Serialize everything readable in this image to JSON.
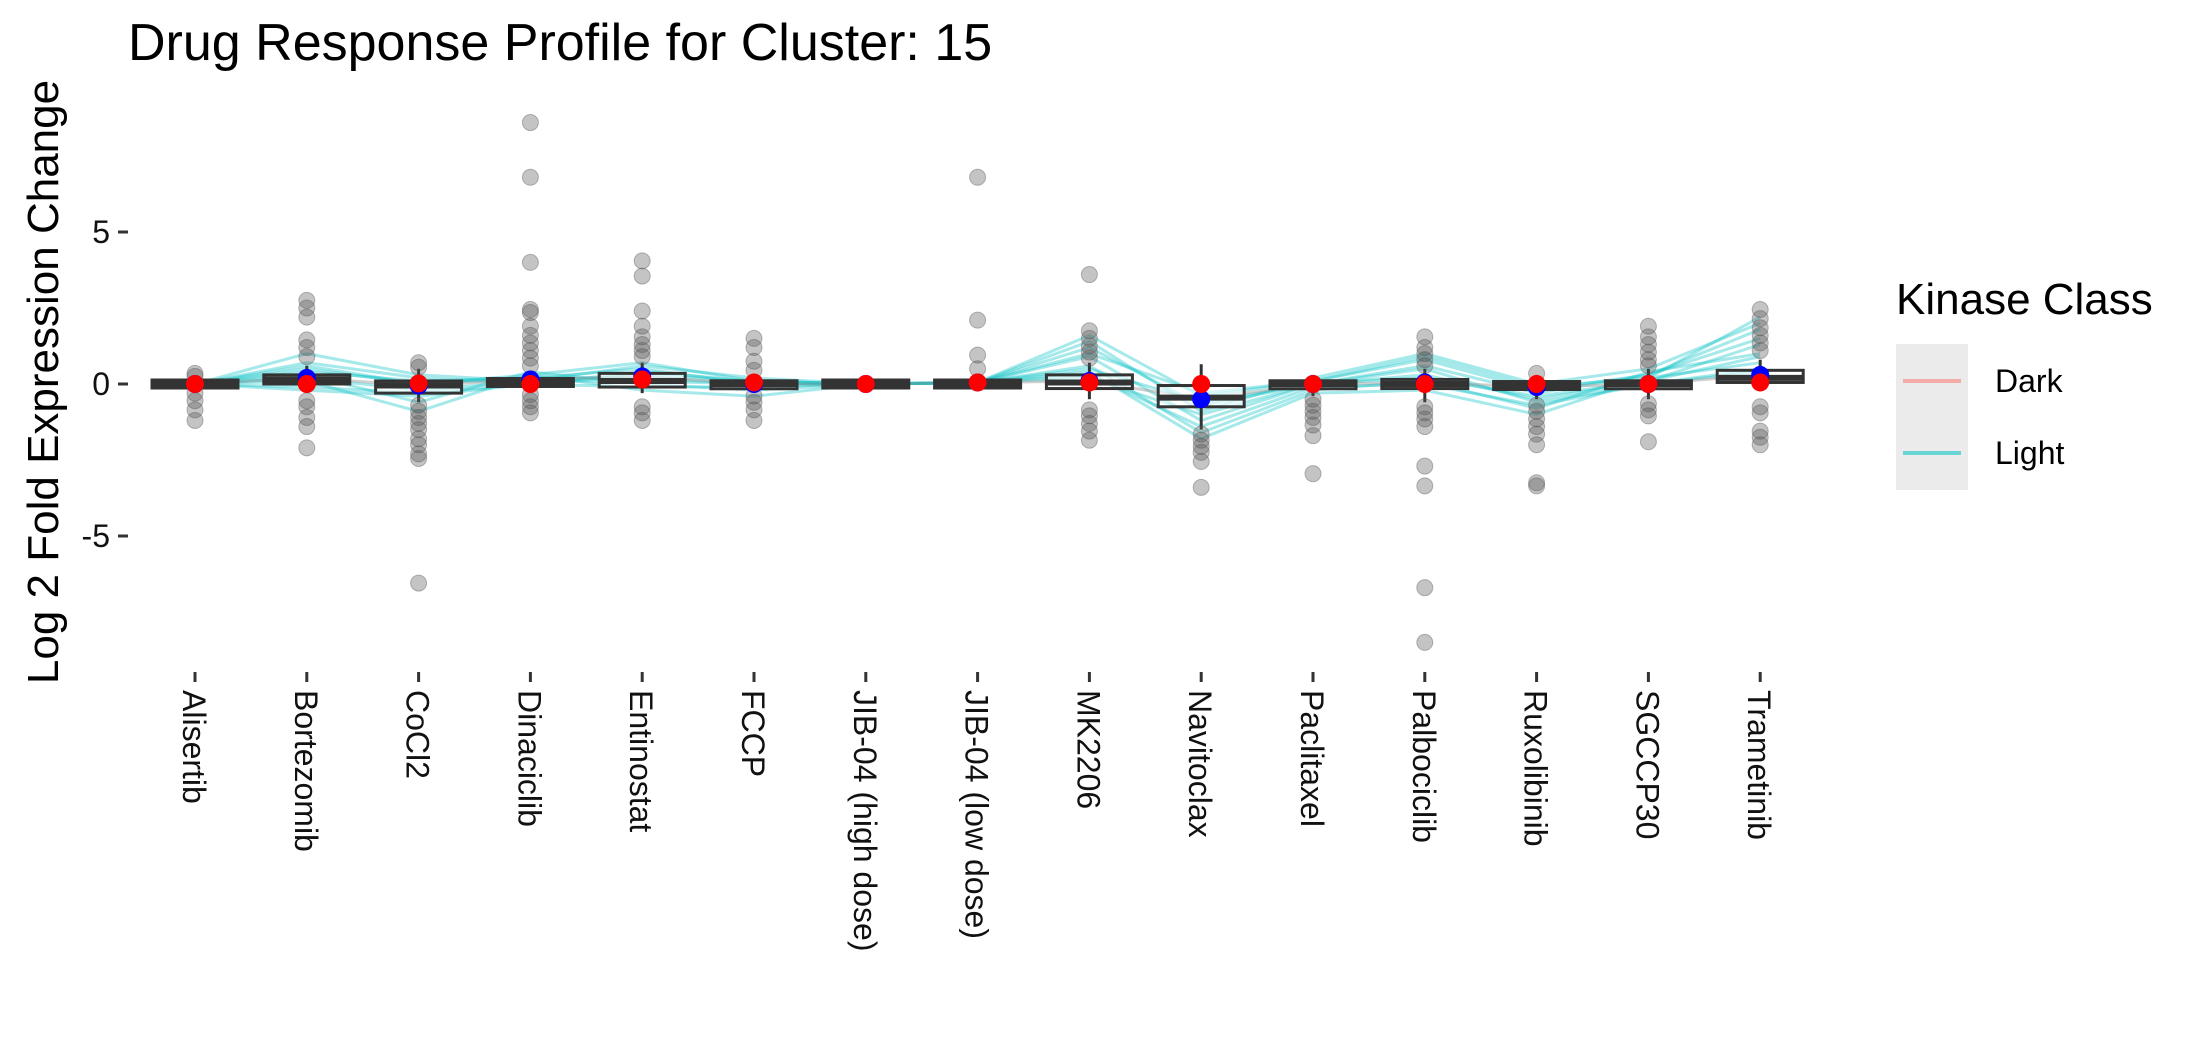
{
  "chart_data": {
    "type": "box",
    "title": "Drug Response Profile for Cluster:  15",
    "ylabel": "Log 2 Fold Expression Change",
    "xlabel": "",
    "ylim": [
      -8.8,
      9.2
    ],
    "yticks": [
      -5,
      0,
      5
    ],
    "ytick_labels": [
      "-5",
      "0",
      "5"
    ],
    "grid": false,
    "legend": {
      "title": "Kinase Class",
      "placement": "right",
      "entries": [
        {
          "name": "Dark",
          "color": "#F8766D"
        },
        {
          "name": "Light",
          "color": "#00BFC4"
        }
      ]
    },
    "categories": [
      "Alisertib",
      "Bortezomib",
      "CoCl2",
      "Dinaciclib",
      "Entinostat",
      "FCCP",
      "JIB-04 (high dose)",
      "JIB-04 (low dose)",
      "MK2206",
      "Navitoclax",
      "Paclitaxel",
      "Palbociclib",
      "Ruxolibinib",
      "SGCCP30",
      "Trametinib"
    ],
    "boxes": [
      {
        "q1": -0.05,
        "median": 0.0,
        "q3": 0.05,
        "whisker_low": -0.1,
        "whisker_high": 0.1
      },
      {
        "q1": 0.0,
        "median": 0.15,
        "q3": 0.3,
        "whisker_low": -0.3,
        "whisker_high": 0.6
      },
      {
        "q1": -0.3,
        "median": -0.05,
        "q3": 0.1,
        "whisker_low": -0.6,
        "whisker_high": 0.5
      },
      {
        "q1": -0.05,
        "median": 0.05,
        "q3": 0.15,
        "whisker_low": -0.2,
        "whisker_high": 0.3
      },
      {
        "q1": -0.1,
        "median": 0.1,
        "q3": 0.35,
        "whisker_low": -0.3,
        "whisker_high": 0.7
      },
      {
        "q1": -0.1,
        "median": 0.0,
        "q3": 0.05,
        "whisker_low": -0.25,
        "whisker_high": 0.2
      },
      {
        "q1": -0.02,
        "median": 0.0,
        "q3": 0.02,
        "whisker_low": -0.05,
        "whisker_high": 0.05
      },
      {
        "q1": -0.05,
        "median": 0.0,
        "q3": 0.05,
        "whisker_low": -0.1,
        "whisker_high": 0.1
      },
      {
        "q1": -0.15,
        "median": 0.05,
        "q3": 0.3,
        "whisker_low": -0.5,
        "whisker_high": 0.7
      },
      {
        "q1": -0.75,
        "median": -0.45,
        "q3": -0.05,
        "whisker_low": -1.5,
        "whisker_high": 0.65
      },
      {
        "q1": -0.1,
        "median": 0.0,
        "q3": 0.05,
        "whisker_low": -0.4,
        "whisker_high": 0.3
      },
      {
        "q1": -0.15,
        "median": 0.0,
        "q3": 0.15,
        "whisker_low": -0.6,
        "whisker_high": 0.5
      },
      {
        "q1": -0.15,
        "median": -0.05,
        "q3": 0.05,
        "whisker_low": -0.5,
        "whisker_high": 0.3
      },
      {
        "q1": -0.15,
        "median": 0.0,
        "q3": 0.1,
        "whisker_low": -0.5,
        "whisker_high": 0.5
      },
      {
        "q1": 0.05,
        "median": 0.2,
        "q3": 0.45,
        "whisker_low": -0.1,
        "whisker_high": 0.8
      }
    ],
    "outliers": [
      [
        0.35,
        -0.3,
        -0.55,
        -0.85,
        -1.2,
        0.25
      ],
      [
        2.75,
        2.5,
        2.2,
        1.45,
        1.2,
        0.9,
        -0.55,
        -0.75,
        -1.1,
        -1.4,
        -2.1
      ],
      [
        0.7,
        0.55,
        -0.7,
        -0.9,
        -1.1,
        -1.3,
        -1.5,
        -1.8,
        -2.0,
        -2.3,
        -2.45,
        -6.55
      ],
      [
        8.6,
        6.8,
        4.0,
        2.45,
        2.35,
        1.9,
        1.6,
        1.35,
        1.1,
        0.85,
        0.6,
        -0.35,
        -0.55,
        -0.75,
        -0.95
      ],
      [
        4.05,
        3.55,
        2.4,
        1.9,
        1.55,
        1.3,
        1.1,
        0.9,
        -0.75,
        -0.95,
        -1.2
      ],
      [
        1.5,
        1.2,
        0.75,
        0.45,
        -0.4,
        -0.6,
        -0.85,
        -1.2
      ],
      [],
      [
        6.8,
        2.1,
        0.95,
        0.5
      ],
      [
        3.6,
        1.75,
        1.5,
        1.25,
        1.05,
        0.85,
        -0.85,
        -1.05,
        -1.3,
        -1.55,
        -1.85
      ],
      [
        -1.65,
        -1.85,
        -2.05,
        -2.25,
        -2.55,
        -3.4
      ],
      [
        -0.5,
        -0.7,
        -0.9,
        -1.1,
        -1.35,
        -1.7,
        -2.95
      ],
      [
        1.55,
        1.2,
        1.0,
        0.8,
        0.6,
        -0.75,
        -0.95,
        -1.15,
        -1.4,
        -2.7,
        -3.35,
        -6.7,
        -8.5
      ],
      [
        0.35,
        -0.7,
        -0.9,
        -1.15,
        -1.4,
        -1.65,
        -2.0,
        -3.25,
        -3.35
      ],
      [
        1.9,
        1.55,
        1.3,
        1.05,
        0.8,
        0.6,
        -0.65,
        -0.85,
        -1.05,
        -1.9
      ],
      [
        2.45,
        2.15,
        1.85,
        1.6,
        1.35,
        1.1,
        -0.75,
        -0.95,
        -1.55,
        -1.75,
        -2.0
      ]
    ],
    "dark_profile_means": [
      0.0,
      0.0,
      0.02,
      0.0,
      0.15,
      0.05,
      0.0,
      0.05,
      0.05,
      0.0,
      0.0,
      0.0,
      0.0,
      0.0,
      0.05
    ],
    "light_profile_means": [
      0.0,
      0.2,
      -0.05,
      0.15,
      0.25,
      0.0,
      0.0,
      0.05,
      0.1,
      -0.5,
      0.0,
      0.05,
      -0.1,
      0.0,
      0.3
    ],
    "lines": [
      {
        "class": "Light",
        "values": [
          0.0,
          1.0,
          0.3,
          0.1,
          0.6,
          0.2,
          0.0,
          0.05,
          1.6,
          -0.4,
          0.1,
          0.9,
          -0.1,
          0.2,
          2.2
        ]
      },
      {
        "class": "Light",
        "values": [
          0.0,
          0.7,
          0.2,
          0.0,
          0.4,
          0.1,
          0.0,
          0.05,
          1.2,
          -0.7,
          0.0,
          0.6,
          -0.3,
          0.3,
          1.8
        ]
      },
      {
        "class": "Light",
        "values": [
          0.0,
          0.5,
          0.0,
          0.2,
          0.2,
          0.0,
          0.0,
          0.05,
          0.9,
          -1.2,
          0.0,
          0.3,
          -0.5,
          0.1,
          1.3
        ]
      },
      {
        "class": "Light",
        "values": [
          0.0,
          0.3,
          -0.6,
          0.4,
          0.0,
          -0.2,
          0.0,
          0.05,
          0.6,
          -1.6,
          -0.2,
          0.1,
          -0.8,
          0.4,
          1.0
        ]
      },
      {
        "class": "Light",
        "values": [
          0.0,
          0.1,
          -0.9,
          0.3,
          -0.2,
          -0.4,
          0.0,
          0.05,
          0.4,
          -1.8,
          -0.3,
          -0.2,
          -1.0,
          0.2,
          0.7
        ]
      },
      {
        "class": "Light",
        "values": [
          0.0,
          -0.2,
          -0.4,
          0.0,
          0.3,
          0.1,
          0.0,
          0.05,
          0.2,
          -1.0,
          0.0,
          0.5,
          -0.6,
          0.0,
          0.5
        ]
      },
      {
        "class": "Light",
        "values": [
          0.0,
          0.4,
          0.1,
          0.2,
          0.5,
          0.0,
          0.0,
          0.05,
          1.0,
          -0.3,
          0.1,
          0.8,
          -0.2,
          0.3,
          1.5
        ]
      },
      {
        "class": "Light",
        "values": [
          0.0,
          0.2,
          -0.2,
          0.1,
          0.1,
          0.0,
          0.0,
          0.05,
          0.5,
          -0.6,
          0.0,
          0.2,
          -0.4,
          0.1,
          0.9
        ]
      },
      {
        "class": "Light",
        "values": [
          0.0,
          0.6,
          0.0,
          0.3,
          0.7,
          0.1,
          0.0,
          0.05,
          1.4,
          -0.9,
          0.2,
          1.0,
          0.0,
          0.5,
          2.0
        ]
      },
      {
        "class": "Light",
        "values": [
          0.0,
          -0.1,
          -0.3,
          0.0,
          -0.1,
          -0.1,
          0.0,
          0.05,
          0.3,
          -1.4,
          -0.1,
          0.0,
          -0.7,
          0.0,
          0.4
        ]
      }
    ]
  }
}
